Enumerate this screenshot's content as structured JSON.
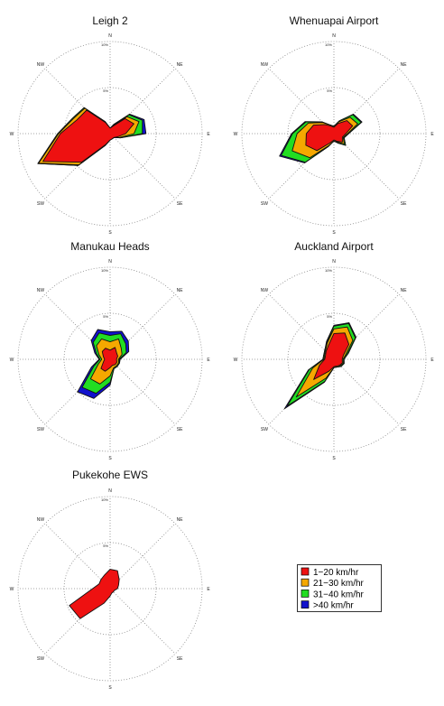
{
  "colors": {
    "1-20": "#ee1111",
    "21-30": "#f5a800",
    "31-40": "#22dd22",
    ">40": "#1111cc",
    "grid": "#888888"
  },
  "directions": [
    "N",
    "NE",
    "E",
    "SE",
    "S",
    "SW",
    "W",
    "NW"
  ],
  "ring_labels": [
    "5%",
    "10%"
  ],
  "legend": [
    {
      "key": "1-20",
      "label": "1−20 km/hr"
    },
    {
      "key": "21-30",
      "label": "21−30 km/hr"
    },
    {
      "key": "31-40",
      "label": "31−40 km/hr"
    },
    {
      "key": ">40",
      "label": ">40 km/hr"
    }
  ],
  "chart_data": [
    {
      "type": "wind-rose",
      "title": "Leigh 2",
      "rmax": 10,
      "directions_deg": [
        0,
        22.5,
        45,
        67.5,
        90,
        112.5,
        135,
        157.5,
        180,
        202.5,
        225,
        247.5,
        270,
        292.5,
        315,
        337.5
      ],
      "series": [
        {
          "key": "1-20",
          "values": [
            0.6,
            0.9,
            2.3,
            2.8,
            1.7,
            0.9,
            0.6,
            0.6,
            0.7,
            1.3,
            4.4,
            7.9,
            5.4,
            3.9,
            3.6,
            1.3
          ]
        },
        {
          "key": "21-30",
          "values": [
            0.6,
            1.0,
            2.6,
            3.4,
            2.6,
            1.1,
            0.6,
            0.6,
            0.7,
            1.4,
            4.8,
            8.4,
            5.6,
            4.3,
            3.9,
            1.4
          ]
        },
        {
          "key": "31-40",
          "values": [
            0.6,
            1.1,
            2.9,
            3.8,
            3.5,
            1.2,
            0.6,
            0.6,
            0.7,
            1.4,
            4.9,
            8.5,
            5.7,
            4.4,
            4.0,
            1.4
          ]
        },
        {
          "key": ">40",
          "values": [
            0.6,
            1.1,
            3.0,
            4.0,
            3.9,
            1.2,
            0.6,
            0.6,
            0.7,
            1.4,
            4.9,
            8.5,
            5.7,
            4.4,
            4.0,
            1.4
          ]
        }
      ]
    },
    {
      "type": "wind-rose",
      "title": "Whenuapai Airport",
      "rmax": 10,
      "directions_deg": [
        0,
        22.5,
        45,
        67.5,
        90,
        112.5,
        135,
        157.5,
        180,
        202.5,
        225,
        247.5,
        270,
        292.5,
        315,
        337.5
      ],
      "series": [
        {
          "key": "1-20",
          "values": [
            0.7,
            1.2,
            2.0,
            2.2,
            1.3,
            1.0,
            1.3,
            0.9,
            0.7,
            1.1,
            2.6,
            3.3,
            3.0,
            2.4,
            1.4,
            0.9
          ]
        },
        {
          "key": "21-30",
          "values": [
            0.8,
            1.4,
            2.5,
            2.8,
            1.5,
            1.1,
            1.6,
            1.0,
            0.8,
            1.4,
            3.7,
            4.9,
            4.0,
            3.0,
            1.7,
            1.0
          ]
        },
        {
          "key": "31-40",
          "values": [
            0.8,
            1.5,
            2.9,
            3.2,
            1.6,
            1.2,
            1.8,
            1.1,
            0.8,
            1.5,
            4.4,
            6.2,
            4.5,
            3.3,
            1.8,
            1.0
          ]
        },
        {
          "key": ">40",
          "values": [
            0.8,
            1.5,
            3.0,
            3.3,
            1.6,
            1.2,
            1.8,
            1.1,
            0.8,
            1.5,
            4.5,
            6.4,
            4.6,
            3.4,
            1.8,
            1.0
          ]
        }
      ]
    },
    {
      "type": "wind-rose",
      "title": "Manukau Heads",
      "rmax": 10,
      "directions_deg": [
        0,
        22.5,
        45,
        67.5,
        90,
        112.5,
        135,
        157.5,
        180,
        202.5,
        225,
        247.5,
        270,
        292.5,
        315,
        337.5
      ],
      "series": [
        {
          "key": "1-20",
          "values": [
            1.0,
            1.4,
            1.0,
            0.9,
            0.7,
            0.8,
            0.8,
            0.7,
            0.9,
            1.4,
            1.4,
            0.8,
            0.6,
            0.8,
            1.2,
            1.3
          ]
        },
        {
          "key": "21-30",
          "values": [
            1.9,
            2.4,
            1.7,
            1.4,
            0.9,
            1.0,
            1.0,
            1.0,
            1.8,
            2.9,
            3.0,
            1.4,
            0.9,
            1.3,
            2.1,
            2.4
          ]
        },
        {
          "key": "31-40",
          "values": [
            2.6,
            3.0,
            2.4,
            1.9,
            1.0,
            1.1,
            1.1,
            1.1,
            2.5,
            4.0,
            4.3,
            1.9,
            1.1,
            1.6,
            2.6,
            3.1
          ]
        },
        {
          "key": ">40",
          "values": [
            3.0,
            3.3,
            2.8,
            2.2,
            1.1,
            1.1,
            1.1,
            1.1,
            2.8,
            4.6,
            5.0,
            2.2,
            1.2,
            1.8,
            2.9,
            3.5
          ]
        }
      ]
    },
    {
      "type": "wind-rose",
      "title": "Auckland Airport",
      "rmax": 10,
      "directions_deg": [
        0,
        22.5,
        45,
        67.5,
        90,
        112.5,
        135,
        157.5,
        180,
        202.5,
        225,
        247.5,
        270,
        292.5,
        315,
        337.5
      ],
      "series": [
        {
          "key": "1-20",
          "values": [
            2.8,
            3.1,
            2.3,
            1.1,
            0.9,
            1.0,
            0.9,
            0.8,
            0.8,
            1.4,
            3.1,
            1.7,
            1.0,
            1.0,
            1.2,
            1.6
          ]
        },
        {
          "key": "21-30",
          "values": [
            3.3,
            3.8,
            2.9,
            1.4,
            1.0,
            1.1,
            1.0,
            0.9,
            0.9,
            2.2,
            5.8,
            2.5,
            1.1,
            1.1,
            1.3,
            1.9
          ]
        },
        {
          "key": "31-40",
          "values": [
            3.6,
            4.2,
            3.3,
            1.6,
            1.1,
            1.2,
            1.1,
            0.9,
            0.9,
            2.6,
            7.2,
            2.9,
            1.2,
            1.2,
            1.4,
            2.0
          ]
        },
        {
          "key": ">40",
          "values": [
            3.7,
            4.3,
            3.4,
            1.7,
            1.1,
            1.2,
            1.1,
            0.9,
            0.9,
            2.7,
            7.6,
            3.0,
            1.2,
            1.2,
            1.4,
            2.1
          ]
        }
      ]
    },
    {
      "type": "wind-rose",
      "title": "Pukekohe EWS",
      "rmax": 10,
      "directions_deg": [
        0,
        22.5,
        45,
        67.5,
        90,
        112.5,
        135,
        157.5,
        180,
        202.5,
        225,
        247.5,
        270,
        292.5,
        315,
        337.5
      ],
      "series": [
        {
          "key": "1-20",
          "values": [
            2.1,
            2.1,
            1.4,
            1.0,
            0.8,
            0.5,
            0.5,
            0.5,
            0.8,
            1.7,
            4.6,
            4.8,
            1.9,
            1.3,
            1.4,
            1.6
          ]
        }
      ]
    }
  ]
}
